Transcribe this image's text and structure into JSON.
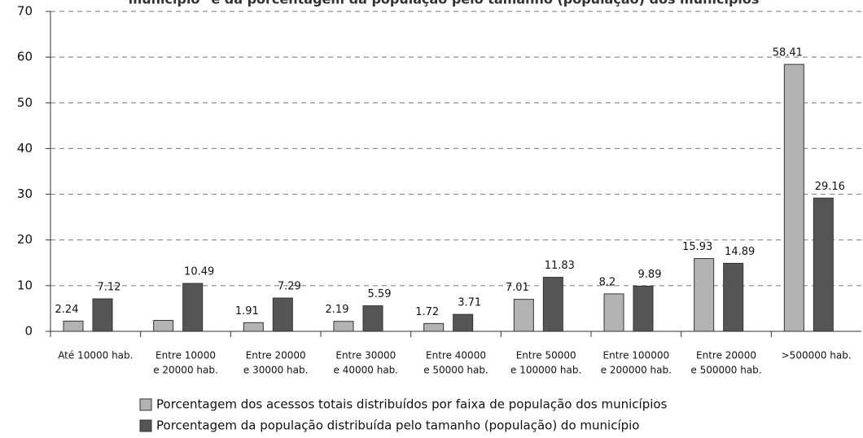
{
  "chart_data": {
    "type": "bar",
    "title": "município\" e da porcentagem da população pelo tamanho (população) dos municípios",
    "categories": [
      [
        "Até 10000 hab."
      ],
      [
        "Entre 10000",
        "e 20000 hab."
      ],
      [
        "Entre 20000",
        "e 30000 hab."
      ],
      [
        "Entre 30000",
        "e 40000 hab."
      ],
      [
        "Entre 40000",
        "e 50000 hab."
      ],
      [
        "Entre 50000",
        "e 100000 hab."
      ],
      [
        "Entre 100000",
        "e 200000 hab."
      ],
      [
        "Entre 20000",
        "e 500000 hab."
      ],
      [
        ">500000 hab."
      ]
    ],
    "series": [
      {
        "name": "Porcentagem dos acessos totais distribuídos por faixa de população dos municípios",
        "color": "#b3b3b3",
        "values": [
          2.24,
          2.4,
          1.91,
          2.19,
          1.72,
          7.01,
          8.2,
          15.93,
          58.41
        ],
        "value_labels": [
          "2.24",
          null,
          "1.91",
          "2.19",
          "1.72",
          "7.01",
          "8.2",
          "15.93",
          "58.41"
        ]
      },
      {
        "name": "Porcentagem da população distribuída pelo tamanho (população) do município",
        "color": "#555555",
        "values": [
          7.12,
          10.49,
          7.29,
          5.59,
          3.71,
          11.83,
          9.89,
          14.89,
          29.16
        ]
      }
    ],
    "ylim": [
      0,
      70
    ],
    "yticks": [
      0,
      10,
      20,
      30,
      40,
      50,
      60,
      70
    ],
    "grid": true
  }
}
